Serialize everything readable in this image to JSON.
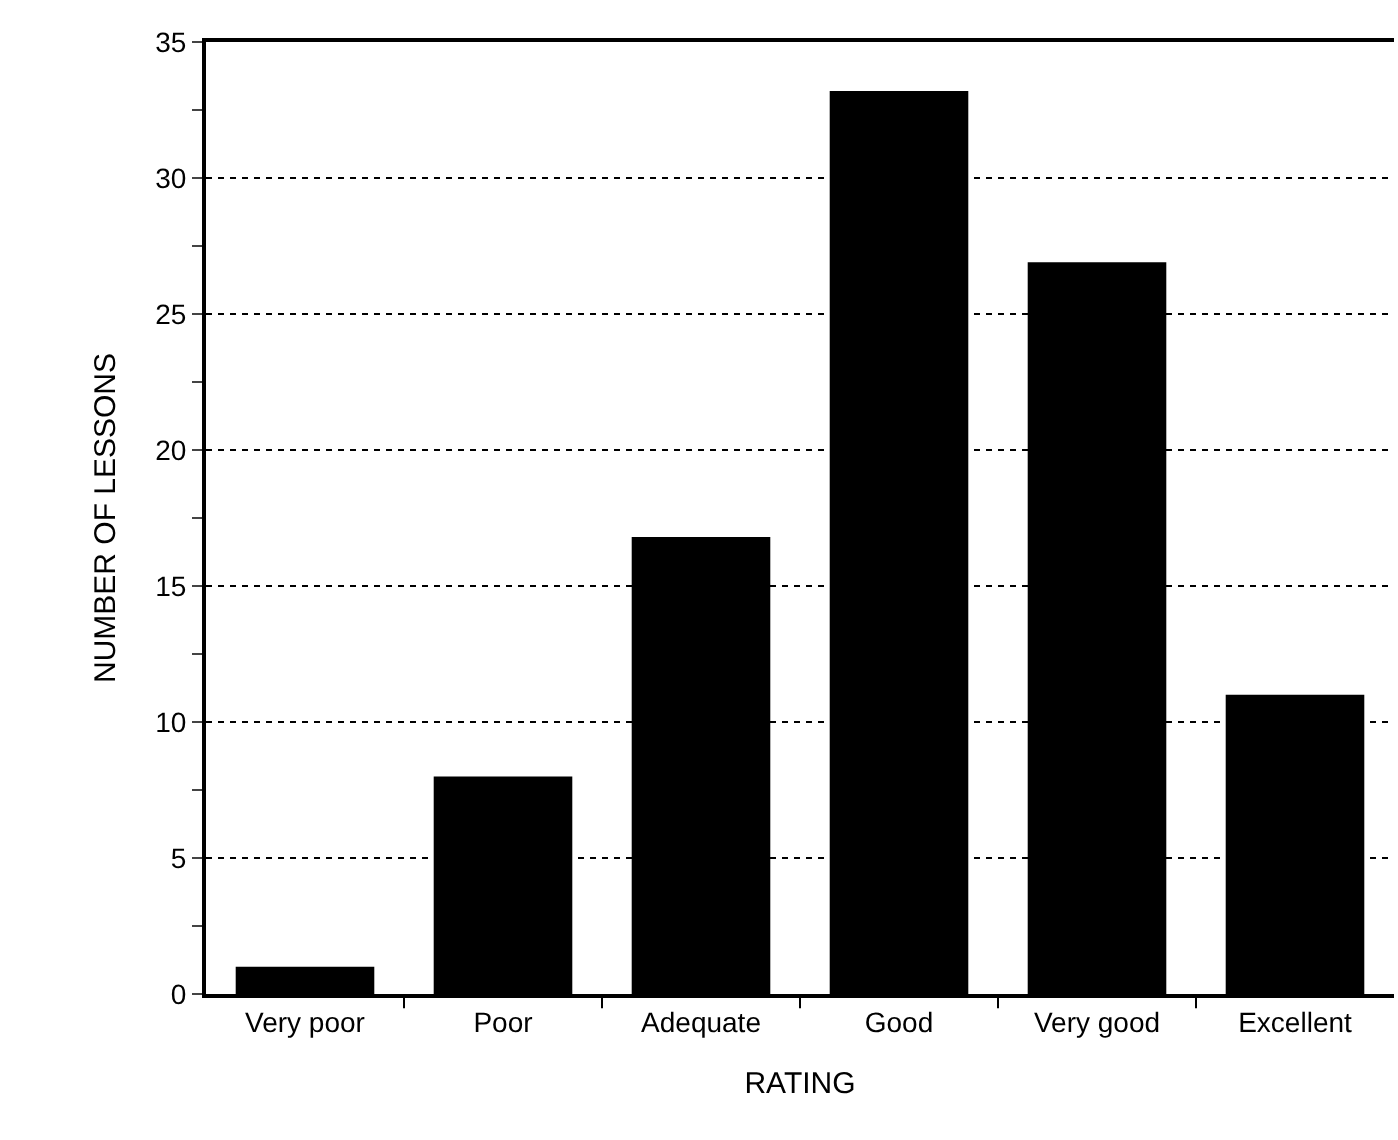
{
  "chart_data": {
    "type": "bar",
    "xlabel": "RATING",
    "ylabel": "NUMBER OF LESSONS",
    "categories": [
      "Very poor",
      "Poor",
      "Adequate",
      "Good",
      "Very good",
      "Excellent"
    ],
    "values": [
      1,
      8,
      16.8,
      33.2,
      26.9,
      11
    ],
    "color": "#000000",
    "ylim": [
      0,
      35
    ],
    "yticks": [
      0,
      {
        "value": 2.5,
        "label": null
      },
      5,
      {
        "value": 7.5,
        "label": null
      },
      10,
      {
        "value": 12.5,
        "label": null
      },
      15,
      {
        "value": 17.5,
        "label": null
      },
      20,
      {
        "value": 22.5,
        "label": null
      },
      25,
      {
        "value": 27.5,
        "label": null
      },
      30,
      {
        "value": 32.5,
        "label": null
      },
      35
    ],
    "grid": "y",
    "line_style": "dotted"
  }
}
